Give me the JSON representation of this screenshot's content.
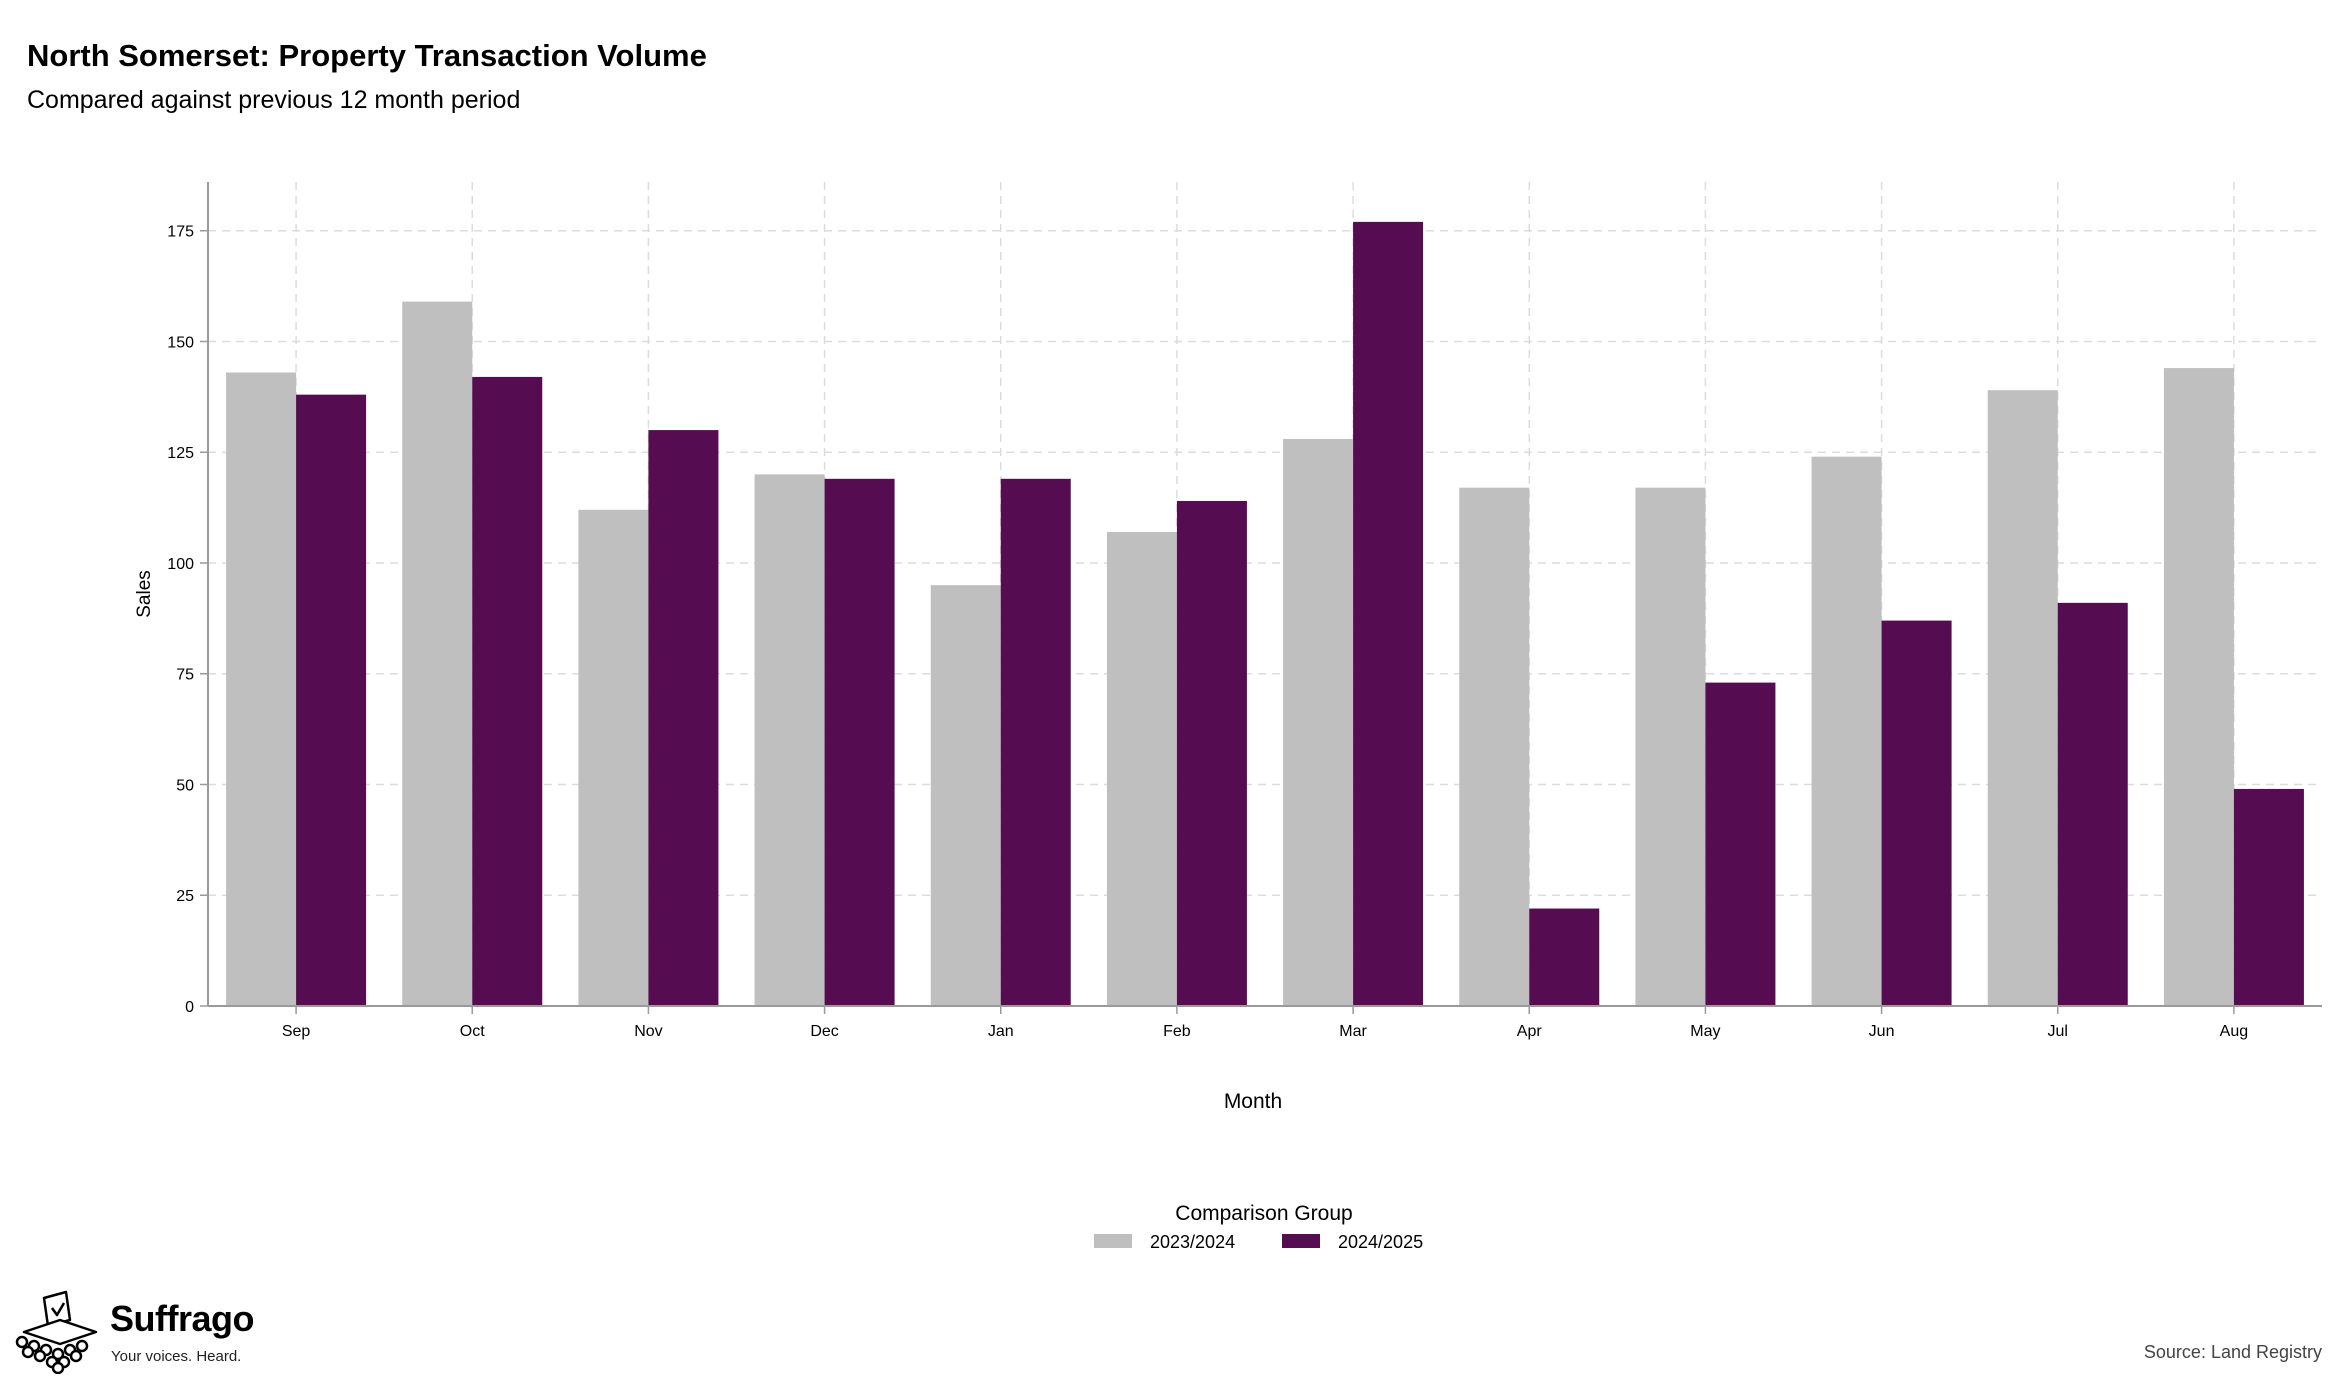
{
  "header": {
    "title": "North Somerset: Property Transaction Volume",
    "subtitle": "Compared against previous 12 month period"
  },
  "footer": {
    "brand_name": "Suffrago",
    "brand_tagline": "Your voices. Heard.",
    "source": "Source: Land Registry"
  },
  "colors": {
    "series_2023_2024": "#bfbfbf",
    "series_2024_2025": "#560c50",
    "grid": "#dcdcdc",
    "axis": "#9a9a9a"
  },
  "chart_data": {
    "type": "bar",
    "title": "North Somerset: Property Transaction Volume",
    "subtitle": "Compared against previous 12 month period",
    "xlabel": "Month",
    "ylabel": "Sales",
    "categories": [
      "Sep",
      "Oct",
      "Nov",
      "Dec",
      "Jan",
      "Feb",
      "Mar",
      "Apr",
      "May",
      "Jun",
      "Jul",
      "Aug"
    ],
    "series": [
      {
        "name": "2023/2024",
        "color": "#bfbfbf",
        "values": [
          143,
          159,
          112,
          120,
          95,
          107,
          128,
          117,
          117,
          124,
          139,
          144
        ]
      },
      {
        "name": "2024/2025",
        "color": "#560c50",
        "values": [
          138,
          142,
          130,
          119,
          119,
          114,
          177,
          22,
          73,
          87,
          91,
          49
        ]
      }
    ],
    "ylim": [
      0,
      186
    ],
    "yticks": [
      0,
      25,
      50,
      75,
      100,
      125,
      150,
      175
    ],
    "grid": true,
    "legend": {
      "title": "Comparison Group",
      "placement": "bottom-center"
    }
  }
}
